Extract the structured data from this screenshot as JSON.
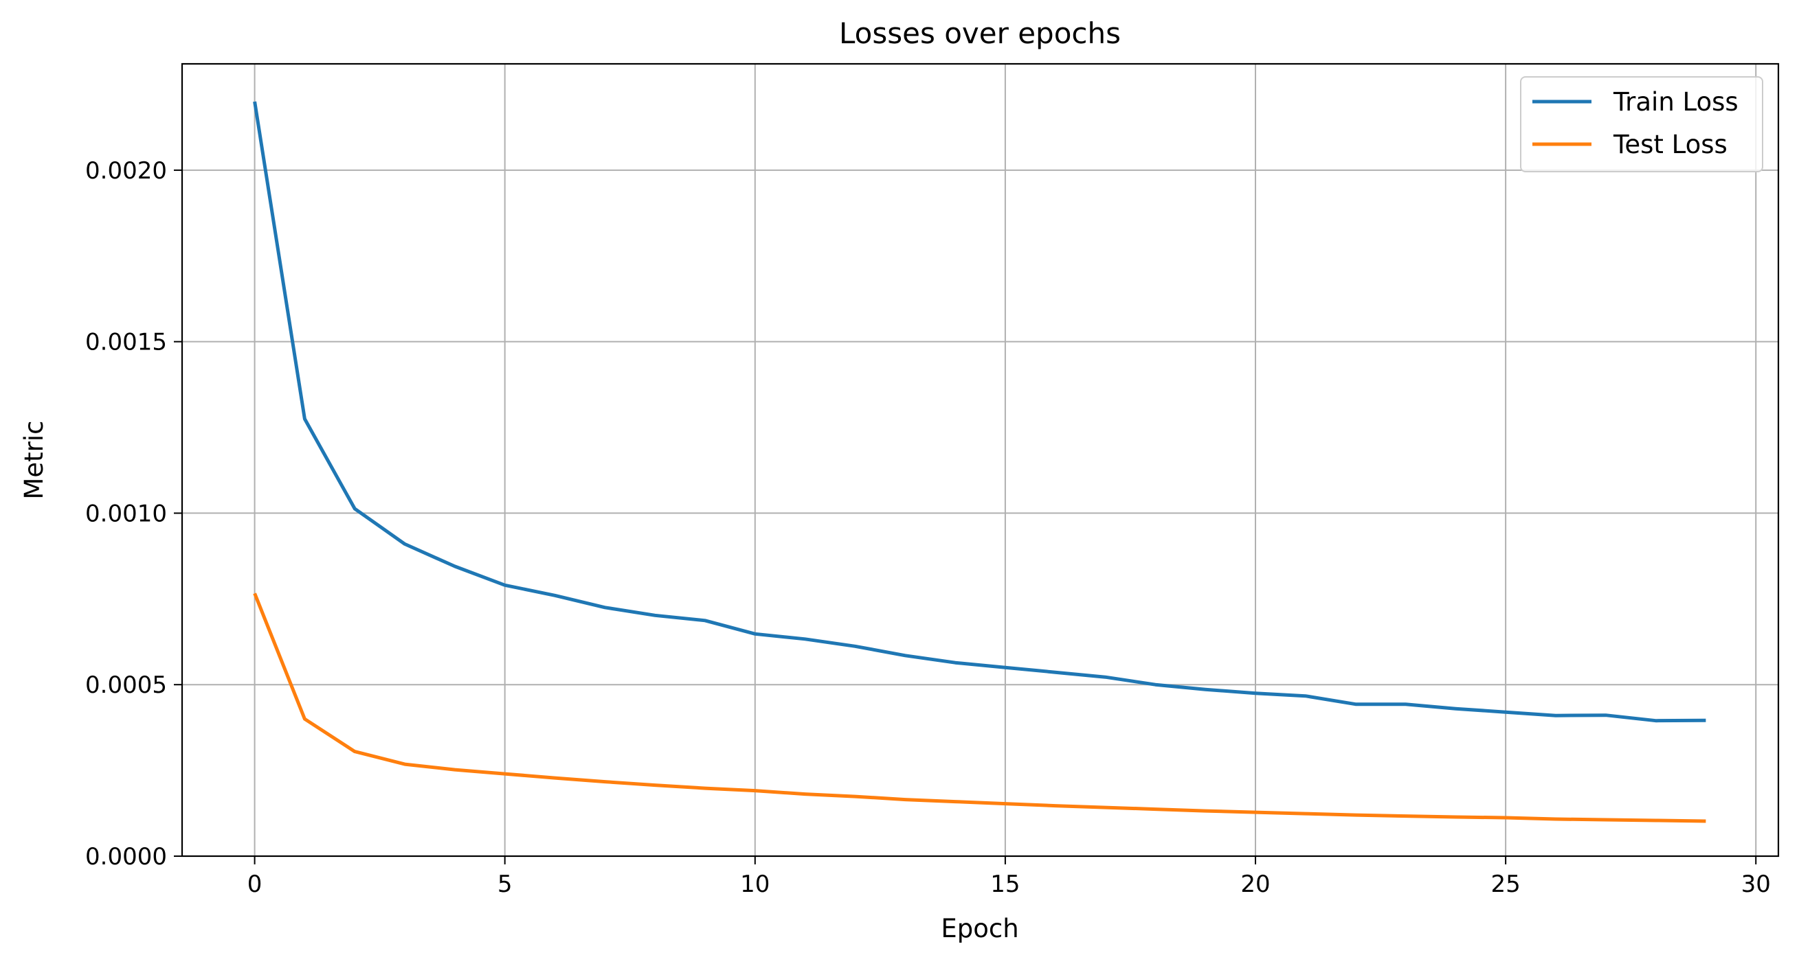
{
  "chart_data": {
    "type": "line",
    "title": "Losses over epochs",
    "xlabel": "Epoch",
    "ylabel": "Metric",
    "xlim": [
      -1.45,
      30.45
    ],
    "ylim": [
      0,
      0.00231
    ],
    "xticks": [
      0,
      5,
      10,
      15,
      20,
      25,
      30
    ],
    "xtick_labels": [
      "0",
      "5",
      "10",
      "15",
      "20",
      "25",
      "30"
    ],
    "yticks": [
      0,
      0.0005,
      0.001,
      0.0015,
      0.002
    ],
    "ytick_labels": [
      "0.0000",
      "0.0005",
      "0.0010",
      "0.0015",
      "0.0020"
    ],
    "grid": true,
    "legend_position": "top-right",
    "x": [
      0,
      1,
      2,
      3,
      4,
      5,
      6,
      7,
      8,
      9,
      10,
      11,
      12,
      13,
      14,
      15,
      16,
      17,
      18,
      19,
      20,
      21,
      22,
      23,
      24,
      25,
      26,
      27,
      28,
      29
    ],
    "series": [
      {
        "name": "Train Loss",
        "color": "#1f77b4",
        "values": [
          0.0022,
          0.001275,
          0.001013,
          0.00091,
          0.000845,
          0.00079,
          0.00076,
          0.000725,
          0.000702,
          0.000687,
          0.000648,
          0.000633,
          0.000612,
          0.000585,
          0.000564,
          0.00055,
          0.000536,
          0.000522,
          0.0005,
          0.000486,
          0.000475,
          0.000467,
          0.000443,
          0.000443,
          0.00043,
          0.00042,
          0.00041,
          0.000411,
          0.000395,
          0.000396
        ]
      },
      {
        "name": "Test Loss",
        "color": "#ff7f0e",
        "values": [
          0.000766,
          0.0004,
          0.000305,
          0.000268,
          0.000252,
          0.00024,
          0.000228,
          0.000217,
          0.000207,
          0.000198,
          0.000191,
          0.000181,
          0.000174,
          0.000165,
          0.000159,
          0.000153,
          0.000147,
          0.000142,
          0.000137,
          0.000132,
          0.000128,
          0.000124,
          0.00012,
          0.000117,
          0.000114,
          0.000112,
          0.000108,
          0.000106,
          0.000104,
          0.000102
        ]
      }
    ]
  }
}
